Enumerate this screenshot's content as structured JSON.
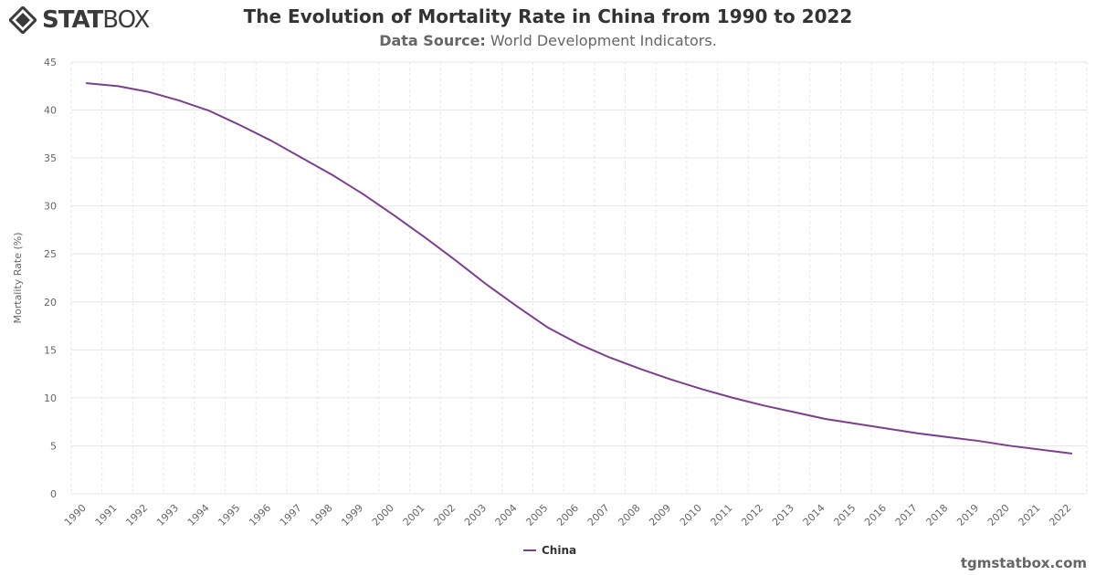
{
  "header": {
    "logo_text_bold": "STAT",
    "logo_text_light": "BOX",
    "title": "The Evolution of Mortality Rate in China from 1990 to 2022",
    "subtitle_label": "Data Source:",
    "subtitle_value": "World Development Indicators."
  },
  "footer": {
    "site": "tgmstatbox.com"
  },
  "colors": {
    "series": "#7b3f8f",
    "grid": "#e6e6e6",
    "axis_text": "#666666"
  },
  "chart_data": {
    "type": "line",
    "title": "The Evolution of Mortality Rate in China from 1990 to 2022",
    "subtitle": "Data Source: World Development Indicators.",
    "xlabel": "",
    "ylabel": "Mortality Rate (%)",
    "ylim": [
      0,
      45
    ],
    "yticks": [
      0,
      5,
      10,
      15,
      20,
      25,
      30,
      35,
      40,
      45
    ],
    "grid": true,
    "legend_position": "bottom-center",
    "categories": [
      "1990",
      "1991",
      "1992",
      "1993",
      "1994",
      "1995",
      "1996",
      "1997",
      "1998",
      "1999",
      "2000",
      "2001",
      "2002",
      "2003",
      "2004",
      "2005",
      "2006",
      "2007",
      "2008",
      "2009",
      "2010",
      "2011",
      "2012",
      "2013",
      "2014",
      "2015",
      "2016",
      "2017",
      "2018",
      "2019",
      "2020",
      "2021",
      "2022"
    ],
    "series": [
      {
        "name": "China",
        "values": [
          42.8,
          42.5,
          41.9,
          41.0,
          39.9,
          38.4,
          36.8,
          35.0,
          33.2,
          31.2,
          29.0,
          26.7,
          24.3,
          21.8,
          19.5,
          17.3,
          15.6,
          14.2,
          13.0,
          11.9,
          10.9,
          10.0,
          9.2,
          8.5,
          7.8,
          7.3,
          6.8,
          6.3,
          5.9,
          5.5,
          5.0,
          4.6,
          4.2
        ]
      }
    ]
  }
}
